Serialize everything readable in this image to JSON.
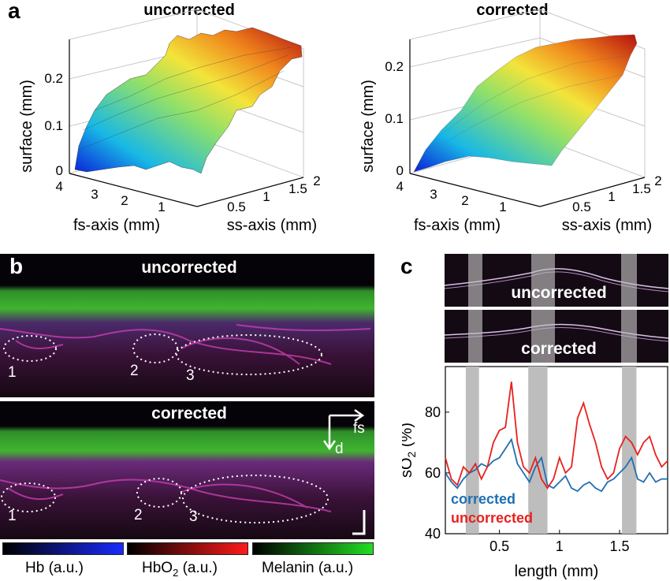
{
  "panel_a": {
    "letter": "a",
    "left_title": "uncorrected",
    "right_title": "corrected",
    "z_label": "surface (mm)",
    "fs_label": "fs-axis (mm)",
    "ss_label": "ss-axis (mm)",
    "z_ticks": [
      "0",
      "0.1",
      "0.2"
    ],
    "fs_ticks": [
      "4",
      "3",
      "2",
      "1"
    ],
    "ss_ticks": [
      "0.5",
      "1",
      "1.5",
      "2"
    ]
  },
  "panel_b": {
    "letter": "b",
    "top_label": "uncorrected",
    "bottom_label": "corrected",
    "roi_labels": [
      "1",
      "2",
      "3"
    ],
    "arrow_fs": "fs",
    "arrow_d": "d",
    "colorbars": [
      {
        "label": "Hb (a.u.)",
        "color": "#1a2bff"
      },
      {
        "label": "HbO",
        "sub": "2",
        "suffix": " (a.u.)",
        "color": "#ff1a1a"
      },
      {
        "label": "Melanin (a.u.)",
        "color": "#22dd22"
      }
    ]
  },
  "panel_c": {
    "letter": "c",
    "top_image_label": "uncorrected",
    "bottom_image_label": "corrected",
    "ylabel_main": "sO",
    "ylabel_sub": "2",
    "ylabel_suffix": " (%)",
    "xlabel": "length (mm)",
    "legend_corrected": "corrected",
    "legend_uncorrected": "uncorrected",
    "x_ticks": [
      "0.5",
      "1",
      "1.5"
    ],
    "y_ticks": [
      "40",
      "60",
      "80"
    ]
  },
  "chart_data": {
    "type": "line",
    "title": "",
    "xlabel": "length (mm)",
    "ylabel": "sO2 (%)",
    "xlim": [
      0.05,
      1.9
    ],
    "ylim": [
      40,
      95
    ],
    "shaded_regions": [
      [
        0.22,
        0.33
      ],
      [
        0.74,
        0.9
      ],
      [
        1.52,
        1.64
      ]
    ],
    "series": [
      {
        "name": "corrected",
        "color": "#1f6fb4",
        "x": [
          0.05,
          0.1,
          0.15,
          0.2,
          0.25,
          0.3,
          0.35,
          0.4,
          0.45,
          0.5,
          0.55,
          0.6,
          0.65,
          0.7,
          0.75,
          0.8,
          0.85,
          0.9,
          0.95,
          1.0,
          1.05,
          1.1,
          1.15,
          1.2,
          1.25,
          1.3,
          1.35,
          1.4,
          1.45,
          1.5,
          1.55,
          1.6,
          1.65,
          1.7,
          1.75,
          1.8,
          1.85,
          1.9
        ],
        "y": [
          60,
          57,
          55,
          58,
          60,
          61,
          63,
          62,
          64,
          65,
          68,
          71,
          63,
          60,
          57,
          62,
          65,
          56,
          55,
          57,
          59,
          55,
          54,
          56,
          57,
          55,
          54,
          57,
          58,
          60,
          62,
          65,
          58,
          57,
          60,
          57,
          58,
          58
        ]
      },
      {
        "name": "uncorrected",
        "color": "#e8211d",
        "x": [
          0.05,
          0.1,
          0.15,
          0.2,
          0.25,
          0.3,
          0.35,
          0.4,
          0.45,
          0.5,
          0.55,
          0.6,
          0.65,
          0.7,
          0.75,
          0.8,
          0.85,
          0.9,
          0.95,
          1.0,
          1.05,
          1.1,
          1.15,
          1.2,
          1.25,
          1.3,
          1.35,
          1.4,
          1.45,
          1.5,
          1.55,
          1.6,
          1.65,
          1.7,
          1.75,
          1.8,
          1.85,
          1.9
        ],
        "y": [
          65,
          58,
          56,
          62,
          60,
          63,
          58,
          62,
          70,
          74,
          75,
          90,
          70,
          62,
          60,
          65,
          58,
          55,
          58,
          65,
          60,
          62,
          78,
          83,
          76,
          70,
          62,
          58,
          60,
          68,
          72,
          70,
          66,
          70,
          72,
          66,
          62,
          64
        ]
      }
    ]
  }
}
